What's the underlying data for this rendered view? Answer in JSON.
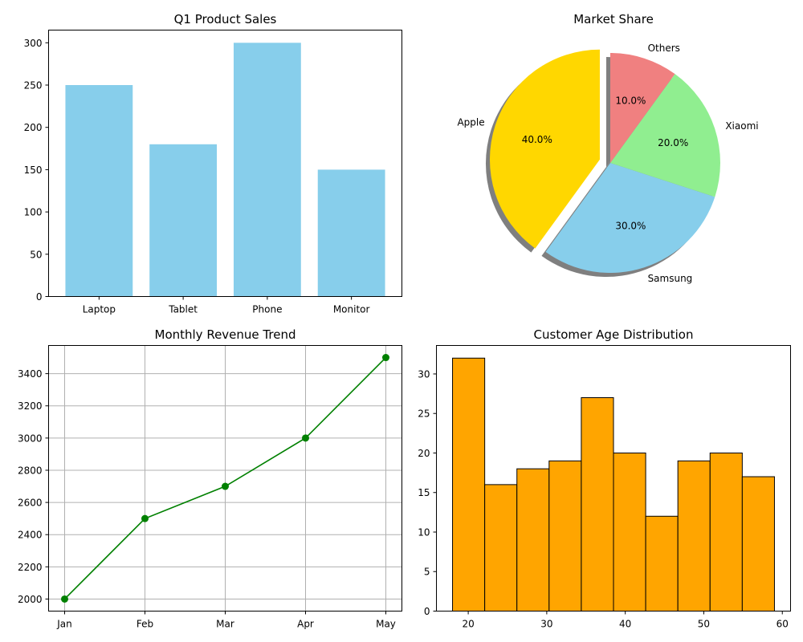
{
  "chart_data": [
    {
      "type": "bar",
      "title": "Q1 Product Sales",
      "categories": [
        "Laptop",
        "Tablet",
        "Phone",
        "Monitor"
      ],
      "values": [
        250,
        180,
        300,
        150
      ],
      "ylim": [
        0,
        315
      ],
      "yticks": [
        0,
        50,
        100,
        150,
        200,
        250,
        300
      ],
      "grid": false,
      "color": "#87ceeb"
    },
    {
      "type": "pie",
      "title": "Market Share",
      "labels": [
        "Apple",
        "Samsung",
        "Xiaomi",
        "Others"
      ],
      "values": [
        40,
        30,
        20,
        10
      ],
      "pct_labels": [
        "40.0%",
        "30.0%",
        "20.0%",
        "10.0%"
      ],
      "colors": [
        "#ffd700",
        "#87ceeb",
        "#90ee90",
        "#f08080"
      ],
      "explode": [
        0.1,
        0,
        0,
        0
      ],
      "start_angle": 90,
      "shadow": true
    },
    {
      "type": "line",
      "title": "Monthly Revenue Trend",
      "x": [
        "Jan",
        "Feb",
        "Mar",
        "Apr",
        "May"
      ],
      "values": [
        2000,
        2500,
        2700,
        3000,
        3500
      ],
      "ylim": [
        1925,
        3575
      ],
      "yticks": [
        2000,
        2200,
        2400,
        2600,
        2800,
        3000,
        3200,
        3400
      ],
      "grid": true,
      "marker": "circle",
      "color": "#008000"
    },
    {
      "type": "bar",
      "subtype": "histogram",
      "title": "Customer Age Distribution",
      "bins": [
        {
          "start": 18,
          "end": 22.1,
          "count": 32
        },
        {
          "start": 22.1,
          "end": 26.2,
          "count": 16
        },
        {
          "start": 26.2,
          "end": 30.3,
          "count": 18
        },
        {
          "start": 30.3,
          "end": 34.4,
          "count": 19
        },
        {
          "start": 34.4,
          "end": 38.5,
          "count": 27
        },
        {
          "start": 38.5,
          "end": 42.6,
          "count": 20
        },
        {
          "start": 42.6,
          "end": 46.7,
          "count": 12
        },
        {
          "start": 46.7,
          "end": 50.8,
          "count": 19
        },
        {
          "start": 50.8,
          "end": 54.9,
          "count": 20
        },
        {
          "start": 54.9,
          "end": 59,
          "count": 17
        }
      ],
      "xlim": [
        15.95,
        61.05
      ],
      "xticks": [
        20,
        30,
        40,
        50,
        60
      ],
      "ylim": [
        0,
        33.6
      ],
      "yticks": [
        0,
        5,
        10,
        15,
        20,
        25,
        30
      ],
      "grid": false,
      "color": "#ffa500",
      "edge_color": "#000000"
    }
  ]
}
